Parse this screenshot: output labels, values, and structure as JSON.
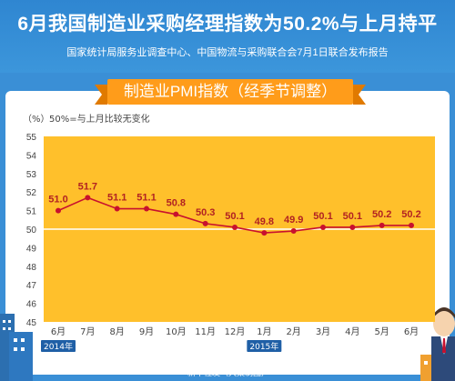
{
  "header": {
    "title": "6月我国制造业采购经理指数为50.2%与上月持平",
    "subtitle": "国家统计局服务业调查中心、中国物流与采购联合会7月1日联合发布报告"
  },
  "chart_data": {
    "type": "line",
    "title": "制造业PMI指数（经季节调整）",
    "ylabel": "（%）",
    "reference_note": "50%=与上月比较无变化",
    "ylim": [
      45,
      55
    ],
    "yticks": [
      "45",
      "46",
      "47",
      "48",
      "49",
      "50",
      "51",
      "52",
      "53",
      "54",
      "55"
    ],
    "categories": [
      "6月",
      "7月",
      "8月",
      "9月",
      "10月",
      "11月",
      "12月",
      "1月",
      "2月",
      "3月",
      "4月",
      "5月",
      "6月"
    ],
    "year_labels": [
      {
        "text": "2014年",
        "category_index": 0
      },
      {
        "text": "2015年",
        "category_index": 7
      }
    ],
    "series": [
      {
        "values": [
          51.0,
          51.7,
          51.1,
          51.1,
          50.8,
          50.3,
          50.1,
          49.8,
          49.9,
          50.1,
          50.1,
          50.2,
          50.2
        ]
      }
    ],
    "value_labels": [
      "51.0",
      "51.7",
      "51.1",
      "51.1",
      "50.8",
      "50.3",
      "50.1",
      "49.8",
      "49.9",
      "50.1",
      "50.1",
      "50.2",
      "50.2"
    ],
    "reference_line": 50,
    "grid": false,
    "colors": {
      "plot_background": "#ffc02b",
      "line": "#c8102e",
      "value_label": "#b22222",
      "reference_line": "#ffffff",
      "axis_text": "#444444"
    }
  },
  "footer": {
    "credit": "新华社发（大巢制图）"
  },
  "decor": {
    "left_icon": "factory-buildings-icon",
    "right_icon": "businessman-icon"
  }
}
